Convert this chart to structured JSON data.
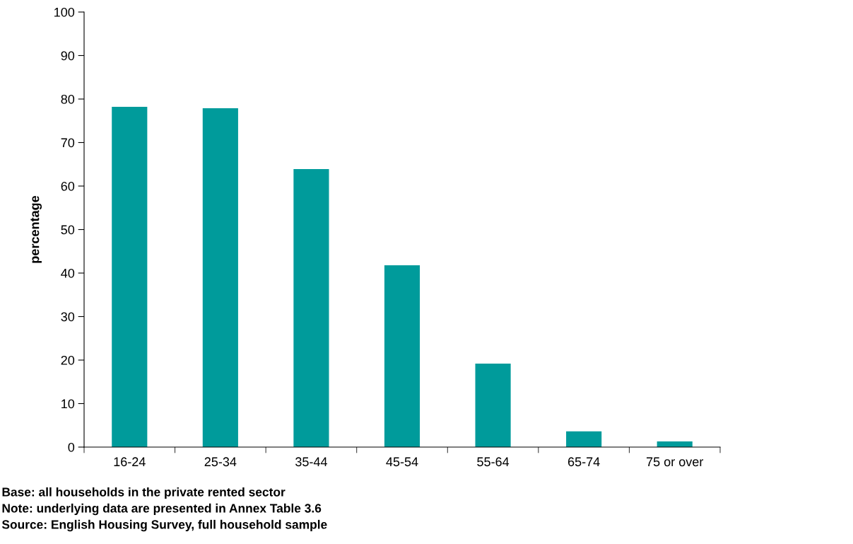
{
  "chart_data": {
    "type": "bar",
    "ylabel": "percentage",
    "categories": [
      "16-24",
      "25-34",
      "35-44",
      "45-54",
      "55-64",
      "65-74",
      "75 or over"
    ],
    "values": [
      78.2,
      77.9,
      63.9,
      41.8,
      19.2,
      3.6,
      1.3
    ],
    "color": "#009b9b",
    "ylim": [
      0,
      100
    ],
    "yticks": [
      0,
      10,
      20,
      30,
      40,
      50,
      60,
      70,
      80,
      90,
      100
    ],
    "grid": false,
    "legend": false,
    "annotations": [
      "Base: all households in the private rented sector",
      "Note: underlying data are presented in Annex Table 3.6",
      "Source: English Housing Survey, full household sample"
    ]
  }
}
